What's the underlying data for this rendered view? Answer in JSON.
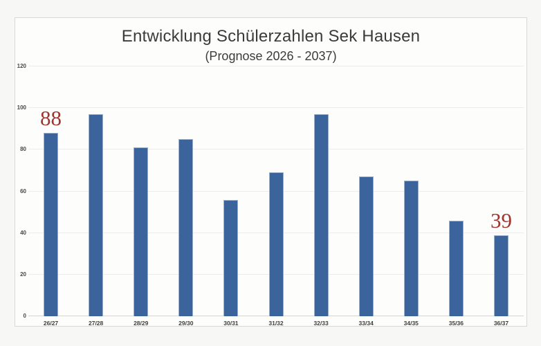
{
  "chart_data": {
    "type": "bar",
    "title": "Entwicklung Schülerzahlen Sek Hausen",
    "subtitle": "(Prognose 2026 - 2037)",
    "categories": [
      "26/27",
      "27/28",
      "28/29",
      "29/30",
      "30/31",
      "31/32",
      "32/33",
      "33/34",
      "34/35",
      "35/36",
      "36/37"
    ],
    "values": [
      88,
      97,
      81,
      85,
      56,
      69,
      97,
      67,
      65,
      46,
      39
    ],
    "xlabel": "",
    "ylabel": "",
    "ylim": [
      0,
      120
    ],
    "yticks": [
      0,
      20,
      40,
      60,
      80,
      100,
      120
    ],
    "grid": true,
    "legend": "none",
    "bar_color": "#3b649c",
    "bar_border_color": "#9db0cb",
    "data_labels": [
      {
        "index": 0,
        "text": "88"
      },
      {
        "index": 10,
        "text": "39"
      }
    ],
    "data_label_color": "#a0342e"
  }
}
